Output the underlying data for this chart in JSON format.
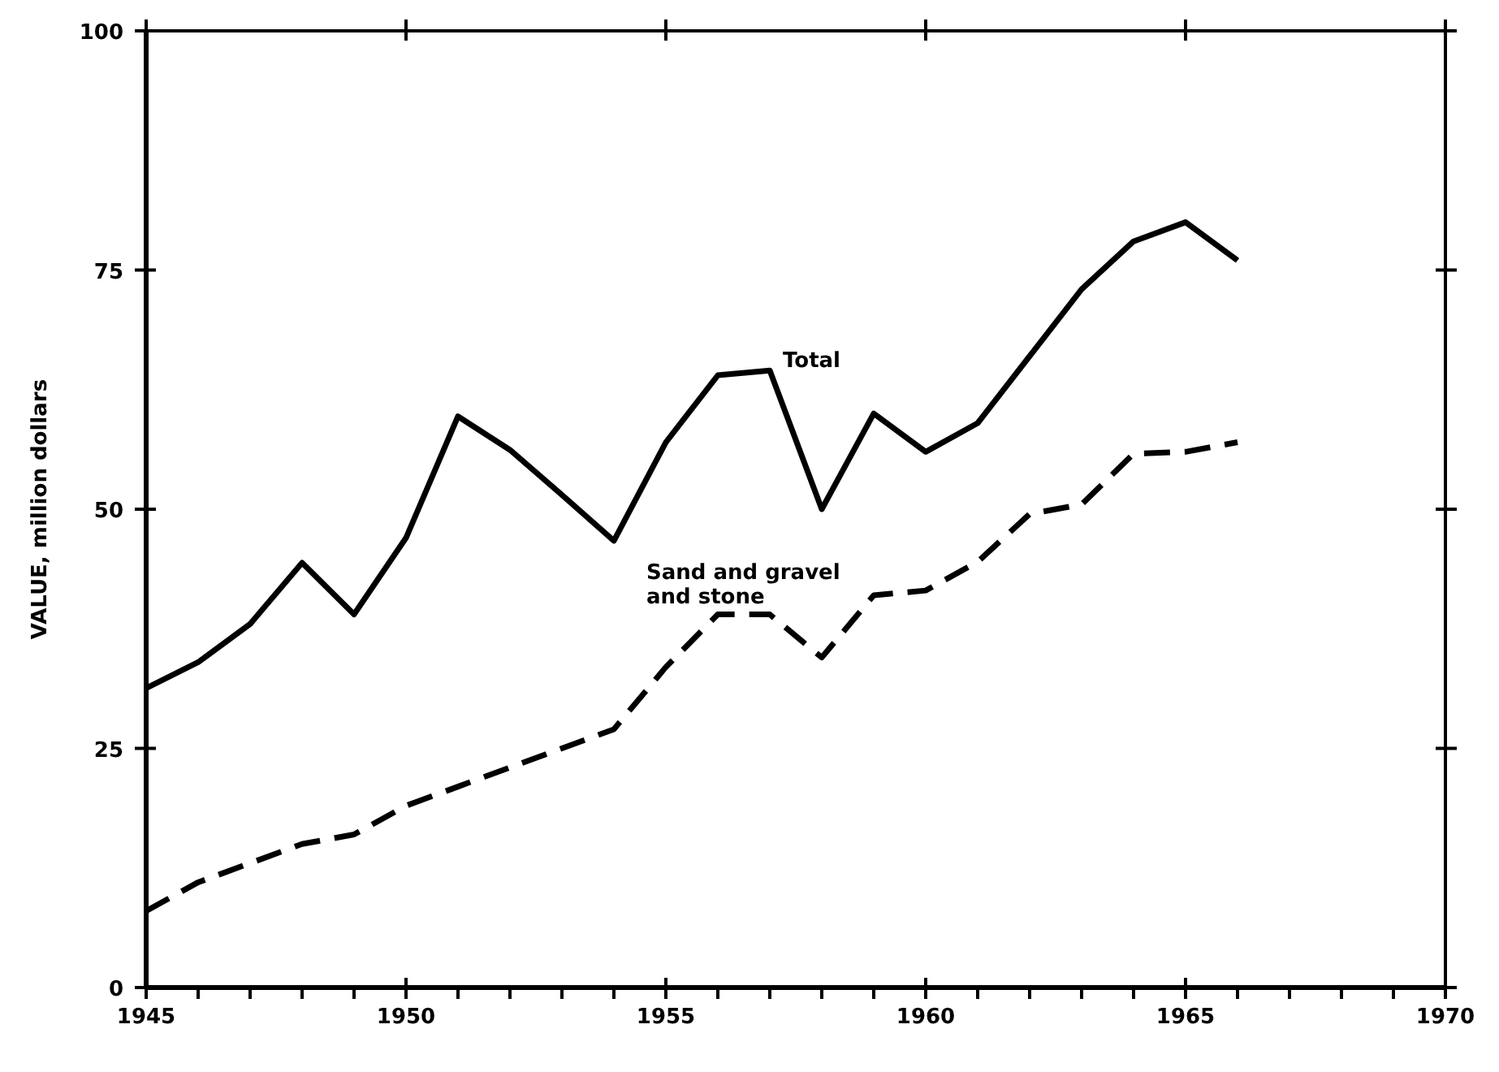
{
  "chart_data": {
    "type": "line",
    "ylabel": "VALUE, million dollars",
    "x": [
      1945,
      1946,
      1947,
      1948,
      1949,
      1950,
      1951,
      1952,
      1953,
      1954,
      1955,
      1956,
      1957,
      1958,
      1959,
      1960,
      1961,
      1962,
      1963,
      1964,
      1965,
      1966
    ],
    "series": [
      {
        "name": "Total",
        "color": "#000000",
        "line_style": "solid",
        "values": [
          31.3,
          34,
          38,
          44.4,
          39,
          47,
          59.7,
          56.2,
          51.5,
          46.7,
          57,
          64,
          64.5,
          50,
          60,
          56,
          59,
          66,
          73,
          78,
          80,
          76
        ]
      },
      {
        "name": "Sand and gravel and stone",
        "color": "#000000",
        "line_style": "dashed",
        "values": [
          8,
          11,
          13,
          15,
          16,
          19,
          21,
          23,
          25,
          27,
          33.5,
          39,
          39,
          34.5,
          41,
          41.5,
          44.5,
          49.5,
          50.5,
          55.8,
          56,
          57
        ]
      }
    ],
    "xlim": [
      1945,
      1970
    ],
    "xticks": [
      1945,
      {
        "value": 1946,
        "label": null
      },
      {
        "value": 1947,
        "label": null
      },
      {
        "value": 1948,
        "label": null
      },
      {
        "value": 1949,
        "label": null
      },
      1950,
      {
        "value": 1951,
        "label": null
      },
      {
        "value": 1952,
        "label": null
      },
      {
        "value": 1953,
        "label": null
      },
      {
        "value": 1954,
        "label": null
      },
      1955,
      {
        "value": 1956,
        "label": null
      },
      {
        "value": 1957,
        "label": null
      },
      {
        "value": 1958,
        "label": null
      },
      {
        "value": 1959,
        "label": null
      },
      1960,
      {
        "value": 1961,
        "label": null
      },
      {
        "value": 1962,
        "label": null
      },
      {
        "value": 1963,
        "label": null
      },
      {
        "value": 1964,
        "label": null
      },
      1965,
      {
        "value": 1966,
        "label": null
      },
      {
        "value": 1967,
        "label": null
      },
      {
        "value": 1968,
        "label": null
      },
      {
        "value": 1969,
        "label": null
      },
      1970
    ],
    "ylim": [
      0,
      100
    ],
    "yticks": [
      0,
      25,
      50,
      75,
      100
    ],
    "grid": false,
    "legend": false,
    "marker": "none"
  }
}
